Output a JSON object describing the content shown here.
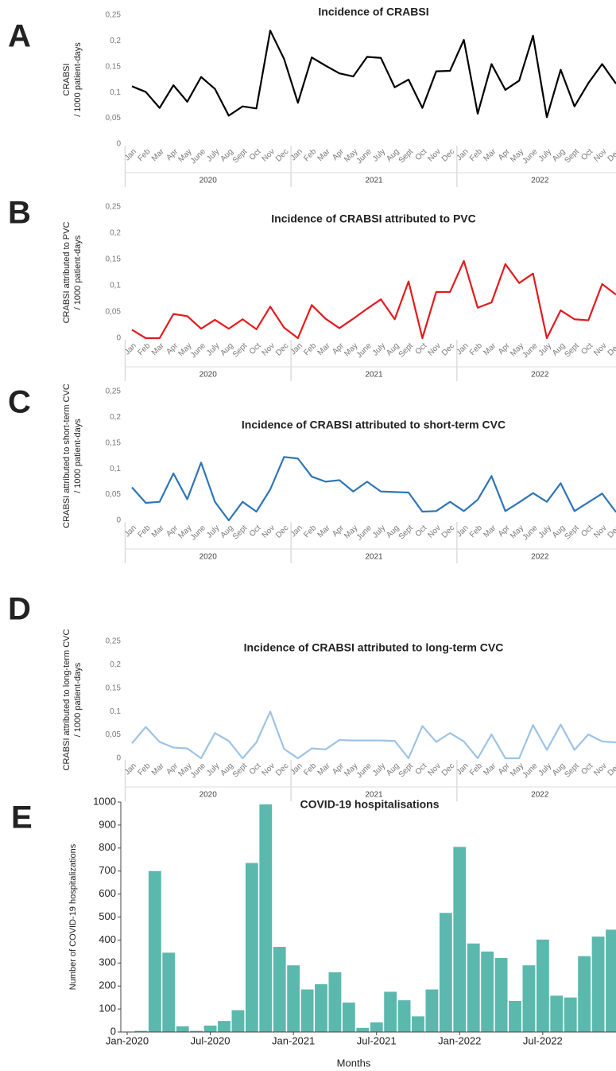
{
  "chart_data": [
    {
      "type": "line",
      "panel": "A",
      "title": "Incidence of CRABSI",
      "ylabel": [
        "CRABSI",
        "/ 1000 patient-days"
      ],
      "categories": [
        "Jan",
        "Feb",
        "Mar",
        "Apr",
        "May",
        "June",
        "July",
        "Aug",
        "Sept",
        "Oct",
        "Nov",
        "Dec",
        "Jan",
        "Feb",
        "Mar",
        "Apr",
        "May",
        "June",
        "July",
        "Aug",
        "Sept",
        "Oct",
        "Nov",
        "Dec",
        "Jan",
        "Feb",
        "Mar",
        "Apr",
        "May",
        "June",
        "July",
        "Aug",
        "Sept",
        "Oct",
        "Nov",
        "Dec"
      ],
      "groups": [
        "2020",
        "2021",
        "2022"
      ],
      "color": "#000000",
      "values": [
        0.112,
        0.101,
        0.07,
        0.114,
        0.082,
        0.13,
        0.107,
        0.055,
        0.073,
        0.069,
        0.22,
        0.165,
        0.08,
        0.168,
        0.152,
        0.137,
        0.131,
        0.169,
        0.167,
        0.11,
        0.125,
        0.07,
        0.141,
        0.142,
        0.202,
        0.059,
        0.155,
        0.105,
        0.123,
        0.21,
        0.052,
        0.144,
        0.073,
        0.118,
        0.155,
        0.117
      ],
      "ylim": [
        0,
        0.25
      ],
      "yticks": [
        0,
        {
          "value": 0.05,
          "label": "0,05"
        },
        {
          "value": 0.1,
          "label": "0,1"
        },
        {
          "value": 0.15,
          "label": "0,15"
        },
        {
          "value": 0.2,
          "label": "0,2"
        },
        {
          "value": 0.25,
          "label": "0,25"
        }
      ]
    },
    {
      "type": "line",
      "panel": "B",
      "title": "Incidence of CRABSI attributed to PVC",
      "ylabel": [
        "CRABSI attributed to PVC",
        "/ 1000 patient-days"
      ],
      "categories": [
        "Jan",
        "Feb",
        "Mar",
        "Apr",
        "May",
        "June",
        "July",
        "Aug",
        "Sept",
        "Oct",
        "Nov",
        "Dec",
        "Jan",
        "Feb",
        "Mar",
        "Apr",
        "May",
        "June",
        "July",
        "Aug",
        "Sept",
        "Oct",
        "Nov",
        "Dec",
        "Jan",
        "Feb",
        "Mar",
        "Apr",
        "May",
        "June",
        "July",
        "Aug",
        "Sept",
        "Oct",
        "Nov",
        "Dec"
      ],
      "groups": [
        "2020",
        "2021",
        "2022"
      ],
      "color": "#e31a1c",
      "values": [
        0.016,
        0,
        0,
        0.046,
        0.042,
        0.018,
        0.035,
        0.018,
        0.036,
        0.017,
        0.06,
        0.02,
        0,
        0.063,
        0.037,
        0.019,
        0.037,
        0.056,
        0.074,
        0.036,
        0.108,
        0,
        0.088,
        0.088,
        0.147,
        0.058,
        0.068,
        0.141,
        0.105,
        0.123,
        0,
        0.053,
        0.036,
        0.034,
        0.103,
        0.083
      ],
      "ylim": [
        0,
        0.25
      ],
      "yticks": [
        0,
        {
          "value": 0.05,
          "label": "0,05"
        },
        {
          "value": 0.1,
          "label": "0,1"
        },
        {
          "value": 0.15,
          "label": "0,15"
        },
        {
          "value": 0.2,
          "label": "0,2"
        },
        {
          "value": 0.25,
          "label": "0,25"
        }
      ]
    },
    {
      "type": "line",
      "panel": "C",
      "title": "Incidence of CRABSI attributed to short-term CVC",
      "ylabel": [
        "CRABSI attributed to short-term CVC",
        "/ 1000 patient-days"
      ],
      "categories": [
        "Jan",
        "Feb",
        "Mar",
        "Apr",
        "May",
        "June",
        "July",
        "Aug",
        "Sept",
        "Oct",
        "Nov",
        "Dec",
        "Jan",
        "Feb",
        "Mar",
        "Apr",
        "May",
        "June",
        "July",
        "Aug",
        "Sept",
        "Oct",
        "Nov",
        "Dec",
        "Jan",
        "Feb",
        "Mar",
        "Apr",
        "May",
        "June",
        "July",
        "Aug",
        "Sept",
        "Oct",
        "Nov",
        "Dec"
      ],
      "groups": [
        "2020",
        "2021",
        "2022"
      ],
      "color": "#2e75b6",
      "values": [
        0.064,
        0.034,
        0.036,
        0.091,
        0.041,
        0.112,
        0.036,
        0,
        0.036,
        0.017,
        0.06,
        0.123,
        0.12,
        0.085,
        0.075,
        0.078,
        0.056,
        0.075,
        0.056,
        0.055,
        0.054,
        0.017,
        0.018,
        0.036,
        0.018,
        0.04,
        0.086,
        0.018,
        0.035,
        0.053,
        0.036,
        0.072,
        0.018,
        0.035,
        0.052,
        0.016
      ],
      "ylim": [
        0,
        0.25
      ],
      "yticks": [
        0,
        {
          "value": 0.05,
          "label": "0,05"
        },
        {
          "value": 0.1,
          "label": "0,1"
        },
        {
          "value": 0.15,
          "label": "0,15"
        },
        {
          "value": 0.2,
          "label": "0,2"
        },
        {
          "value": 0.25,
          "label": "0,25"
        }
      ]
    },
    {
      "type": "line",
      "panel": "D",
      "title": "Incidence of CRABSI attributed to long-term CVC",
      "ylabel": [
        "CRABSI attributed to long-term CVC",
        "/ 1000 patient-days"
      ],
      "categories": [
        "Jan",
        "Feb",
        "Mar",
        "Apr",
        "May",
        "June",
        "July",
        "Aug",
        "Sept",
        "Oct",
        "Nov",
        "Dec",
        "Jan",
        "Feb",
        "Mar",
        "Apr",
        "May",
        "June",
        "July",
        "Aug",
        "Sept",
        "Oct",
        "Nov",
        "Dec",
        "Jan",
        "Feb",
        "Mar",
        "Apr",
        "May",
        "June",
        "July",
        "Aug",
        "Sept",
        "Oct",
        "Nov",
        "Dec"
      ],
      "groups": [
        "2020",
        "2021",
        "2022"
      ],
      "color": "#9dc3e6",
      "values": [
        0.032,
        0.067,
        0.035,
        0.023,
        0.021,
        0,
        0.054,
        0.037,
        0,
        0.034,
        0.1,
        0.02,
        0,
        0.021,
        0.019,
        0.039,
        0.038,
        0.038,
        0.038,
        0.037,
        0,
        0.069,
        0.035,
        0.054,
        0.036,
        0,
        0.051,
        0,
        0,
        0.071,
        0.018,
        0.072,
        0.018,
        0.051,
        0.036,
        0.034
      ],
      "ylim": [
        0,
        0.25
      ],
      "yticks": [
        0,
        {
          "value": 0.05,
          "label": "0,05"
        },
        {
          "value": 0.1,
          "label": "0,1"
        },
        {
          "value": 0.15,
          "label": "0,15"
        },
        {
          "value": 0.2,
          "label": "0,2"
        },
        {
          "value": 0.25,
          "label": "0,25"
        }
      ]
    },
    {
      "type": "bar",
      "panel": "E",
      "title": "COVID-19 hospitalisations",
      "ylabel": [
        "Number of COVID-19 hospitalizations"
      ],
      "xlabel": "Months",
      "x": [
        "2020-02",
        "2020-03",
        "2020-04",
        "2020-05",
        "2020-06",
        "2020-07",
        "2020-08",
        "2020-09",
        "2020-10",
        "2020-11",
        "2020-12",
        "2021-01",
        "2021-02",
        "2021-03",
        "2021-04",
        "2021-05",
        "2021-06",
        "2021-07",
        "2021-08",
        "2021-09",
        "2021-10",
        "2021-11",
        "2021-12",
        "2022-01",
        "2022-02",
        "2022-03",
        "2022-04",
        "2022-05",
        "2022-06",
        "2022-07",
        "2022-08",
        "2022-09",
        "2022-10",
        "2022-11",
        "2022-12"
      ],
      "values": [
        5,
        700,
        345,
        25,
        5,
        28,
        48,
        95,
        735,
        990,
        370,
        290,
        185,
        208,
        260,
        128,
        18,
        42,
        175,
        138,
        68,
        185,
        518,
        805,
        385,
        350,
        322,
        135,
        290,
        402,
        158,
        150,
        330,
        415,
        445
      ],
      "color": "#5bb8ad",
      "xlim": [
        "2020-01",
        "2022-12"
      ],
      "xticks": [
        {
          "value": "2020-01",
          "label": "Jan-2020"
        },
        {
          "value": "2020-07",
          "label": "Jul-2020"
        },
        {
          "value": "2021-01",
          "label": "Jan-2021"
        },
        {
          "value": "2021-07",
          "label": "Jul-2021"
        },
        {
          "value": "2022-01",
          "label": "Jan-2022"
        },
        {
          "value": "2022-07",
          "label": "Jul-2022"
        }
      ],
      "ylim": [
        0,
        1000
      ],
      "yticks": [
        0,
        100,
        200,
        300,
        400,
        500,
        600,
        700,
        800,
        900,
        1000
      ]
    }
  ]
}
